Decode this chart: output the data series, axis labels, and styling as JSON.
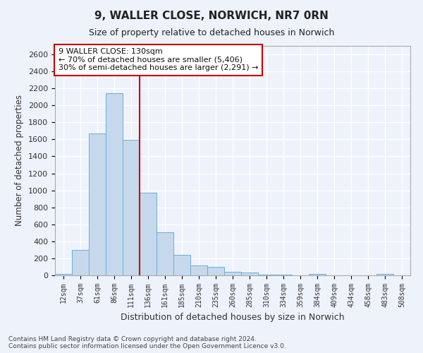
{
  "title": "9, WALLER CLOSE, NORWICH, NR7 0RN",
  "subtitle": "Size of property relative to detached houses in Norwich",
  "xlabel": "Distribution of detached houses by size in Norwich",
  "ylabel": "Number of detached properties",
  "bar_color": "#c6d9ec",
  "bar_edge_color": "#6aaed6",
  "background_color": "#eef2fb",
  "grid_color": "#ffffff",
  "vline_color": "#cc0000",
  "annotation_text": "9 WALLER CLOSE: 130sqm\n← 70% of detached houses are smaller (5,406)\n30% of semi-detached houses are larger (2,291) →",
  "annotation_box_color": "#ffffff",
  "annotation_box_edge": "#cc0000",
  "bins": [
    "12sqm",
    "37sqm",
    "61sqm",
    "86sqm",
    "111sqm",
    "136sqm",
    "161sqm",
    "185sqm",
    "210sqm",
    "235sqm",
    "260sqm",
    "285sqm",
    "310sqm",
    "334sqm",
    "359sqm",
    "384sqm",
    "409sqm",
    "434sqm",
    "458sqm",
    "483sqm",
    "508sqm"
  ],
  "values": [
    20,
    295,
    1670,
    2140,
    1595,
    970,
    510,
    245,
    120,
    100,
    45,
    30,
    10,
    5,
    3,
    20,
    2,
    2,
    0,
    20,
    0
  ],
  "ylim": [
    0,
    2700
  ],
  "yticks": [
    0,
    200,
    400,
    600,
    800,
    1000,
    1200,
    1400,
    1600,
    1800,
    2000,
    2200,
    2400,
    2600
  ],
  "footnote": "Contains HM Land Registry data © Crown copyright and database right 2024.\nContains public sector information licensed under the Open Government Licence v3.0.",
  "figsize": [
    6.0,
    5.0
  ],
  "dpi": 100
}
